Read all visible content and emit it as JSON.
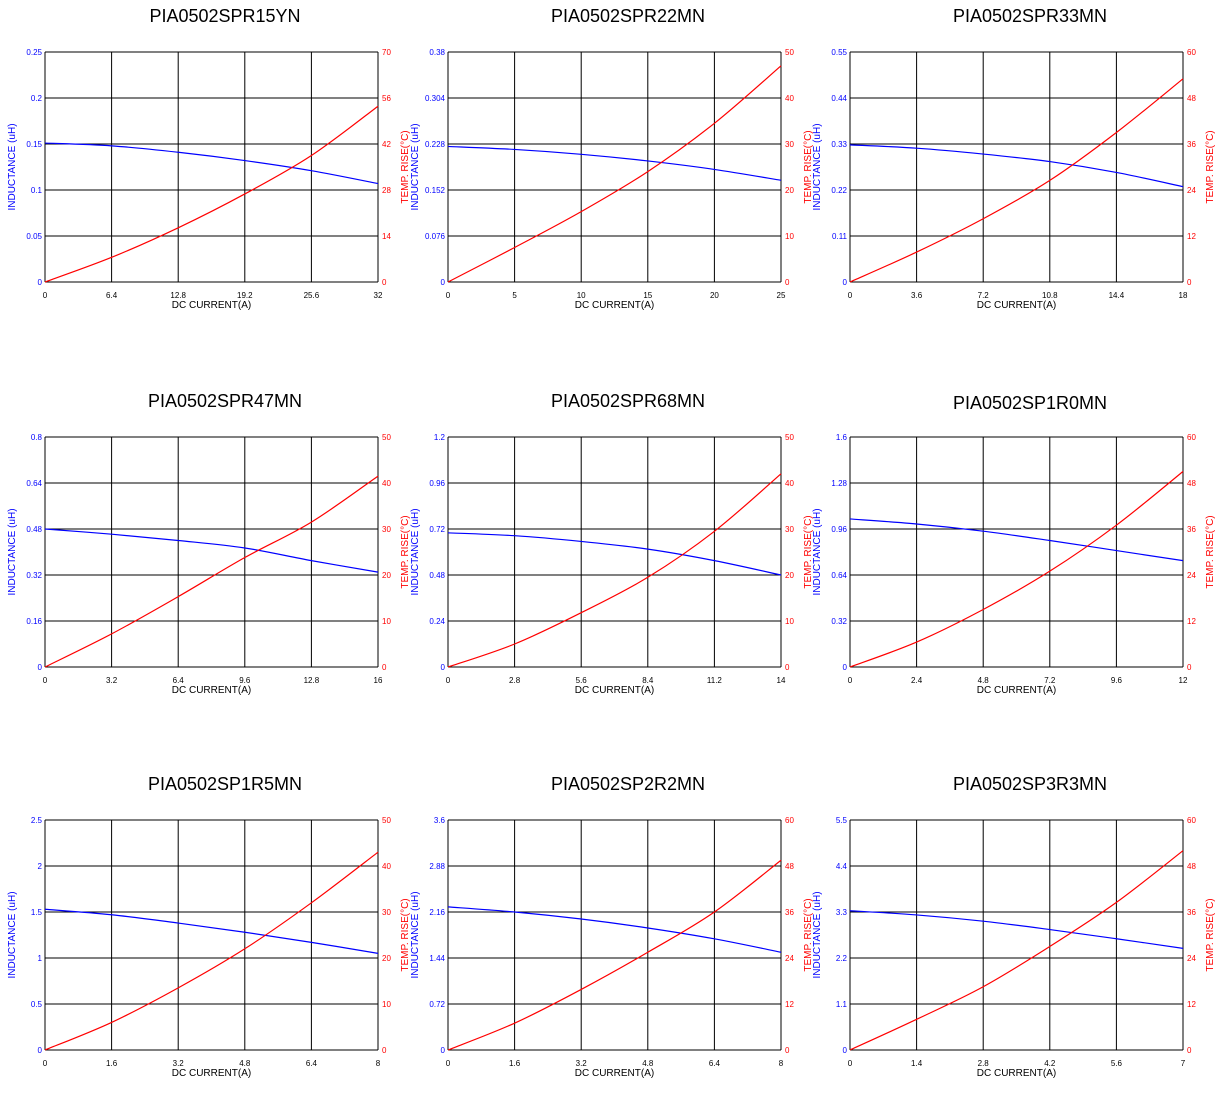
{
  "colors": {
    "inductance": "#0000ff",
    "temp_rise": "#ff0000",
    "grid": "#000000",
    "title": "#000000"
  },
  "chart_data": [
    {
      "type": "line",
      "title": "PIA0502SPR15YN",
      "xlabel": "DC CURRENT(A)",
      "ylabel": "INDUCTANCE (uH)",
      "y2label": "TEMP. RISE(°C)",
      "xlim": [
        0,
        32
      ],
      "x_ticks": [
        "0",
        "6.4",
        "12.8",
        "19.2",
        "25.6",
        "32"
      ],
      "ylim": [
        0,
        0.25
      ],
      "y_ticks": [
        "0",
        "0.05",
        "0.1",
        "0.15",
        "0.2",
        "0.25"
      ],
      "y2lim": [
        0,
        70
      ],
      "y2_ticks": [
        "0",
        "14",
        "28",
        "42",
        "56",
        "70"
      ],
      "series": [
        {
          "name": "INDUCTANCE (uH)",
          "axis": "left",
          "x": [
            0,
            6.4,
            12.8,
            19.2,
            25.6,
            32
          ],
          "values": [
            0.151,
            0.148,
            0.141,
            0.132,
            0.121,
            0.107
          ]
        },
        {
          "name": "TEMP. RISE(°C)",
          "axis": "right",
          "x": [
            0,
            6.4,
            12.8,
            19.2,
            25.6,
            32
          ],
          "values": [
            0,
            7.5,
            16.5,
            26.8,
            38.5,
            53.5
          ]
        }
      ]
    },
    {
      "type": "line",
      "title": "PIA0502SPR22MN",
      "xlabel": "DC CURRENT(A)",
      "ylabel": "INDUCTANCE (uH)",
      "y2label": "TEMP. RISE(°C)",
      "xlim": [
        0,
        25
      ],
      "x_ticks": [
        "0",
        "5",
        "10",
        "15",
        "20",
        "25"
      ],
      "ylim": [
        0,
        0.38
      ],
      "y_ticks": [
        "0",
        "0.076",
        "0.152",
        "0.228",
        "0.304",
        "0.38"
      ],
      "y2lim": [
        0,
        50
      ],
      "y2_ticks": [
        "0",
        "10",
        "20",
        "30",
        "40",
        "50"
      ],
      "series": [
        {
          "name": "INDUCTANCE (uH)",
          "axis": "left",
          "x": [
            0,
            5,
            10,
            15,
            20,
            25
          ],
          "values": [
            0.224,
            0.219,
            0.211,
            0.2,
            0.186,
            0.168
          ]
        },
        {
          "name": "TEMP. RISE(°C)",
          "axis": "right",
          "x": [
            0,
            5,
            10,
            15,
            20,
            25
          ],
          "values": [
            0,
            7.5,
            15.3,
            24,
            34.5,
            47
          ]
        }
      ]
    },
    {
      "type": "line",
      "title": "PIA0502SPR33MN",
      "xlabel": "DC CURRENT(A)",
      "ylabel": "INDUCTANCE (uH)",
      "y2label": "TEMP. RISE(°C)",
      "xlim": [
        0,
        18
      ],
      "x_ticks": [
        "0",
        "3.6",
        "7.2",
        "10.8",
        "14.4",
        "18"
      ],
      "ylim": [
        0,
        0.55
      ],
      "y_ticks": [
        "0",
        "0.11",
        "0.22",
        "0.33",
        "0.44",
        "0.55"
      ],
      "y2lim": [
        0,
        60
      ],
      "y2_ticks": [
        "0",
        "12",
        "24",
        "36",
        "48",
        "60"
      ],
      "series": [
        {
          "name": "INDUCTANCE (uH)",
          "axis": "left",
          "x": [
            0,
            3.6,
            7.2,
            10.8,
            14.4,
            18
          ],
          "values": [
            0.328,
            0.32,
            0.306,
            0.288,
            0.262,
            0.228
          ]
        },
        {
          "name": "TEMP. RISE(°C)",
          "axis": "right",
          "x": [
            0,
            3.6,
            7.2,
            10.8,
            14.4,
            18
          ],
          "values": [
            0,
            7.8,
            16.5,
            26.5,
            39,
            53
          ]
        }
      ]
    },
    {
      "type": "line",
      "title": "PIA0502SPR47MN",
      "xlabel": "DC CURRENT(A)",
      "ylabel": "INDUCTANCE (uH)",
      "y2label": "TEMP. RISE(°C)",
      "xlim": [
        0,
        16
      ],
      "x_ticks": [
        "0",
        "3.2",
        "6.4",
        "9.6",
        "12.8",
        "16"
      ],
      "ylim": [
        0,
        0.8
      ],
      "y_ticks": [
        "0",
        "0.16",
        "0.32",
        "0.48",
        "0.64",
        "0.8"
      ],
      "y2lim": [
        0,
        50
      ],
      "y2_ticks": [
        "0",
        "10",
        "20",
        "30",
        "40",
        "50"
      ],
      "series": [
        {
          "name": "INDUCTANCE (uH)",
          "axis": "left",
          "x": [
            0,
            3.2,
            6.4,
            9.6,
            12.8,
            16
          ],
          "values": [
            0.48,
            0.462,
            0.44,
            0.414,
            0.37,
            0.33
          ]
        },
        {
          "name": "TEMP. RISE(°C)",
          "axis": "right",
          "x": [
            0,
            3.2,
            6.4,
            9.6,
            12.8,
            16
          ],
          "values": [
            0,
            7.2,
            15.3,
            23.8,
            31.5,
            41.5
          ]
        }
      ]
    },
    {
      "type": "line",
      "title": "PIA0502SPR68MN",
      "xlabel": "DC CURRENT(A)",
      "ylabel": "INDUCTANCE (uH)",
      "y2label": "TEMP. RISE(°C)",
      "xlim": [
        0,
        14
      ],
      "x_ticks": [
        "0",
        "2.8",
        "5.6",
        "8.4",
        "11.2",
        "14"
      ],
      "ylim": [
        0,
        1.2
      ],
      "y_ticks": [
        "0",
        "0.24",
        "0.48",
        "0.72",
        "0.96",
        "1.2"
      ],
      "y2lim": [
        0,
        50
      ],
      "y2_ticks": [
        "0",
        "10",
        "20",
        "30",
        "40",
        "50"
      ],
      "series": [
        {
          "name": "INDUCTANCE (uH)",
          "axis": "left",
          "x": [
            0,
            2.8,
            5.6,
            8.4,
            11.2,
            14
          ],
          "values": [
            0.7,
            0.685,
            0.655,
            0.615,
            0.555,
            0.48
          ]
        },
        {
          "name": "TEMP. RISE(°C)",
          "axis": "right",
          "x": [
            0,
            2.8,
            5.6,
            8.4,
            11.2,
            14
          ],
          "values": [
            0,
            5,
            11.8,
            19.5,
            29.5,
            42
          ]
        }
      ]
    },
    {
      "type": "line",
      "title": "PIA0502SP1R0MN",
      "xlabel": "DC CURRENT(A)",
      "ylabel": "INDUCTANCE (uH)",
      "y2label": "TEMP. RISE(°C)",
      "xlim": [
        0,
        12
      ],
      "x_ticks": [
        "0",
        "2.4",
        "4.8",
        "7.2",
        "9.6",
        "12"
      ],
      "ylim": [
        0,
        1.6
      ],
      "y_ticks": [
        "0",
        "0.32",
        "0.64",
        "0.96",
        "1.28",
        "1.6"
      ],
      "y2lim": [
        0,
        60
      ],
      "y2_ticks": [
        "0",
        "12",
        "24",
        "36",
        "48",
        "60"
      ],
      "series": [
        {
          "name": "INDUCTANCE (uH)",
          "axis": "left",
          "x": [
            0,
            2.4,
            4.8,
            7.2,
            9.6,
            12
          ],
          "values": [
            1.03,
            0.995,
            0.945,
            0.88,
            0.81,
            0.74
          ]
        },
        {
          "name": "TEMP. RISE(°C)",
          "axis": "right",
          "x": [
            0,
            2.4,
            4.8,
            7.2,
            9.6,
            12
          ],
          "values": [
            0,
            6.5,
            15,
            25,
            37,
            51
          ]
        }
      ]
    },
    {
      "type": "line",
      "title": "PIA0502SP1R5MN",
      "xlabel": "DC CURRENT(A)",
      "ylabel": "INDUCTANCE (uH)",
      "y2label": "TEMP. RISE(°C)",
      "xlim": [
        0,
        8
      ],
      "x_ticks": [
        "0",
        "1.6",
        "3.2",
        "4.8",
        "6.4",
        "8"
      ],
      "ylim": [
        0,
        2.5
      ],
      "y_ticks": [
        "0",
        "0.5",
        "1",
        "1.5",
        "2",
        "2.5"
      ],
      "y2lim": [
        0,
        50
      ],
      "y2_ticks": [
        "0",
        "10",
        "20",
        "30",
        "40",
        "50"
      ],
      "series": [
        {
          "name": "INDUCTANCE (uH)",
          "axis": "left",
          "x": [
            0,
            1.6,
            3.2,
            4.8,
            6.4,
            8
          ],
          "values": [
            1.53,
            1.47,
            1.38,
            1.28,
            1.17,
            1.05
          ]
        },
        {
          "name": "TEMP. RISE(°C)",
          "axis": "right",
          "x": [
            0,
            1.6,
            3.2,
            4.8,
            6.4,
            8
          ],
          "values": [
            0,
            6,
            13.5,
            22,
            32,
            43
          ]
        }
      ]
    },
    {
      "type": "line",
      "title": "PIA0502SP2R2MN",
      "xlabel": "DC CURRENT(A)",
      "ylabel": "INDUCTANCE (uH)",
      "y2label": "TEMP. RISE(°C)",
      "xlim": [
        0,
        8
      ],
      "x_ticks": [
        "0",
        "1.6",
        "3.2",
        "4.8",
        "6.4",
        "8"
      ],
      "ylim": [
        0,
        3.6
      ],
      "y_ticks": [
        "0",
        "0.72",
        "1.44",
        "2.16",
        "2.88",
        "3.6"
      ],
      "y2lim": [
        0,
        60
      ],
      "y2_ticks": [
        "0",
        "12",
        "24",
        "36",
        "48",
        "60"
      ],
      "series": [
        {
          "name": "INDUCTANCE (uH)",
          "axis": "left",
          "x": [
            0,
            1.6,
            3.2,
            4.8,
            6.4,
            8
          ],
          "values": [
            2.24,
            2.16,
            2.05,
            1.91,
            1.74,
            1.53
          ]
        },
        {
          "name": "TEMP. RISE(°C)",
          "axis": "right",
          "x": [
            0,
            1.6,
            3.2,
            4.8,
            6.4,
            8
          ],
          "values": [
            0,
            7,
            15.8,
            25.5,
            36,
            49.5
          ]
        }
      ]
    },
    {
      "type": "line",
      "title": "PIA0502SP3R3MN",
      "xlabel": "DC CURRENT(A)",
      "ylabel": "INDUCTANCE (uH)",
      "y2label": "TEMP. RISE(°C)",
      "xlim": [
        0,
        7
      ],
      "x_ticks": [
        "0",
        "1.4",
        "2.8",
        "4.2",
        "5.6",
        "7"
      ],
      "ylim": [
        0,
        5.5
      ],
      "y_ticks": [
        "0",
        "1.1",
        "2.2",
        "3.3",
        "4.4",
        "5.5"
      ],
      "y2lim": [
        0,
        60
      ],
      "y2_ticks": [
        "0",
        "12",
        "24",
        "36",
        "48",
        "60"
      ],
      "series": [
        {
          "name": "INDUCTANCE (uH)",
          "axis": "left",
          "x": [
            0,
            1.4,
            2.8,
            4.2,
            5.6,
            7
          ],
          "values": [
            3.33,
            3.23,
            3.08,
            2.88,
            2.66,
            2.43
          ]
        },
        {
          "name": "TEMP. RISE(°C)",
          "axis": "right",
          "x": [
            0,
            1.4,
            2.8,
            4.2,
            5.6,
            7
          ],
          "values": [
            0,
            8,
            16.5,
            27,
            38.5,
            52
          ]
        }
      ]
    }
  ]
}
